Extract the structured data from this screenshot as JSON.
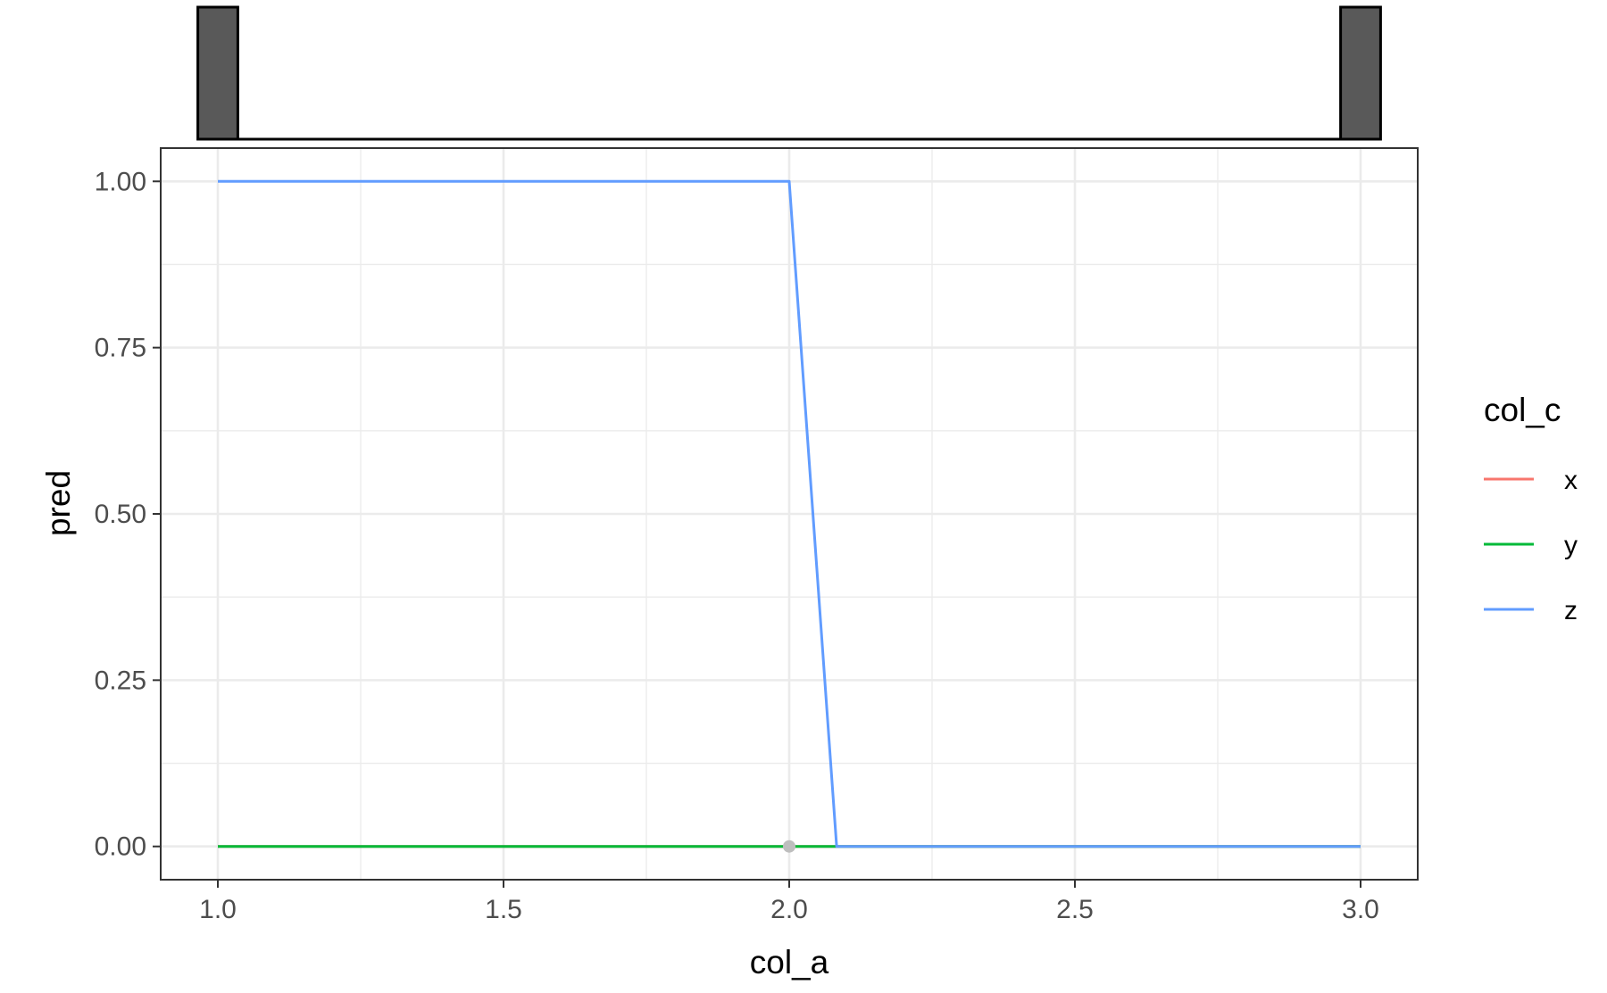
{
  "chart_data": {
    "type": "line",
    "xlabel": "col_a",
    "ylabel": "pred",
    "xlim": [
      0.9,
      3.1
    ],
    "ylim": [
      -0.05,
      1.05
    ],
    "x_ticks": [
      1.0,
      1.5,
      2.0,
      2.5,
      3.0
    ],
    "x_tick_labels": [
      "1.0",
      "1.5",
      "2.0",
      "2.5",
      "3.0"
    ],
    "y_ticks": [
      0.0,
      0.25,
      0.5,
      0.75,
      1.0
    ],
    "y_tick_labels": [
      "0.00",
      "0.25",
      "0.50",
      "0.75",
      "1.00"
    ],
    "grid": true,
    "legend": {
      "title": "col_c",
      "placement": "right",
      "entries": [
        "x",
        "y",
        "z"
      ]
    },
    "series": [
      {
        "name": "x",
        "color": "#F8766D",
        "x": [
          1.0,
          2.0,
          2.083,
          3.0
        ],
        "y": [
          0.0,
          0.0,
          0.0,
          0.0
        ]
      },
      {
        "name": "y",
        "color": "#00BA38",
        "x": [
          1.0,
          2.0,
          2.083,
          3.0
        ],
        "y": [
          0.0,
          0.0,
          0.0,
          0.0
        ]
      },
      {
        "name": "z",
        "color": "#619CFF",
        "x": [
          1.0,
          2.0,
          2.083,
          3.0
        ],
        "y": [
          1.0,
          1.0,
          0.0,
          0.0
        ]
      }
    ],
    "highlight_point": {
      "x": 2.0,
      "y": 0.0,
      "color": "#bebebe"
    },
    "marginal_histogram": {
      "bins": [
        {
          "x_start": 0.965,
          "x_end": 1.035,
          "height": 1
        },
        {
          "x_start": 2.965,
          "x_end": 3.035,
          "height": 1
        }
      ],
      "fill": "#595959"
    }
  }
}
